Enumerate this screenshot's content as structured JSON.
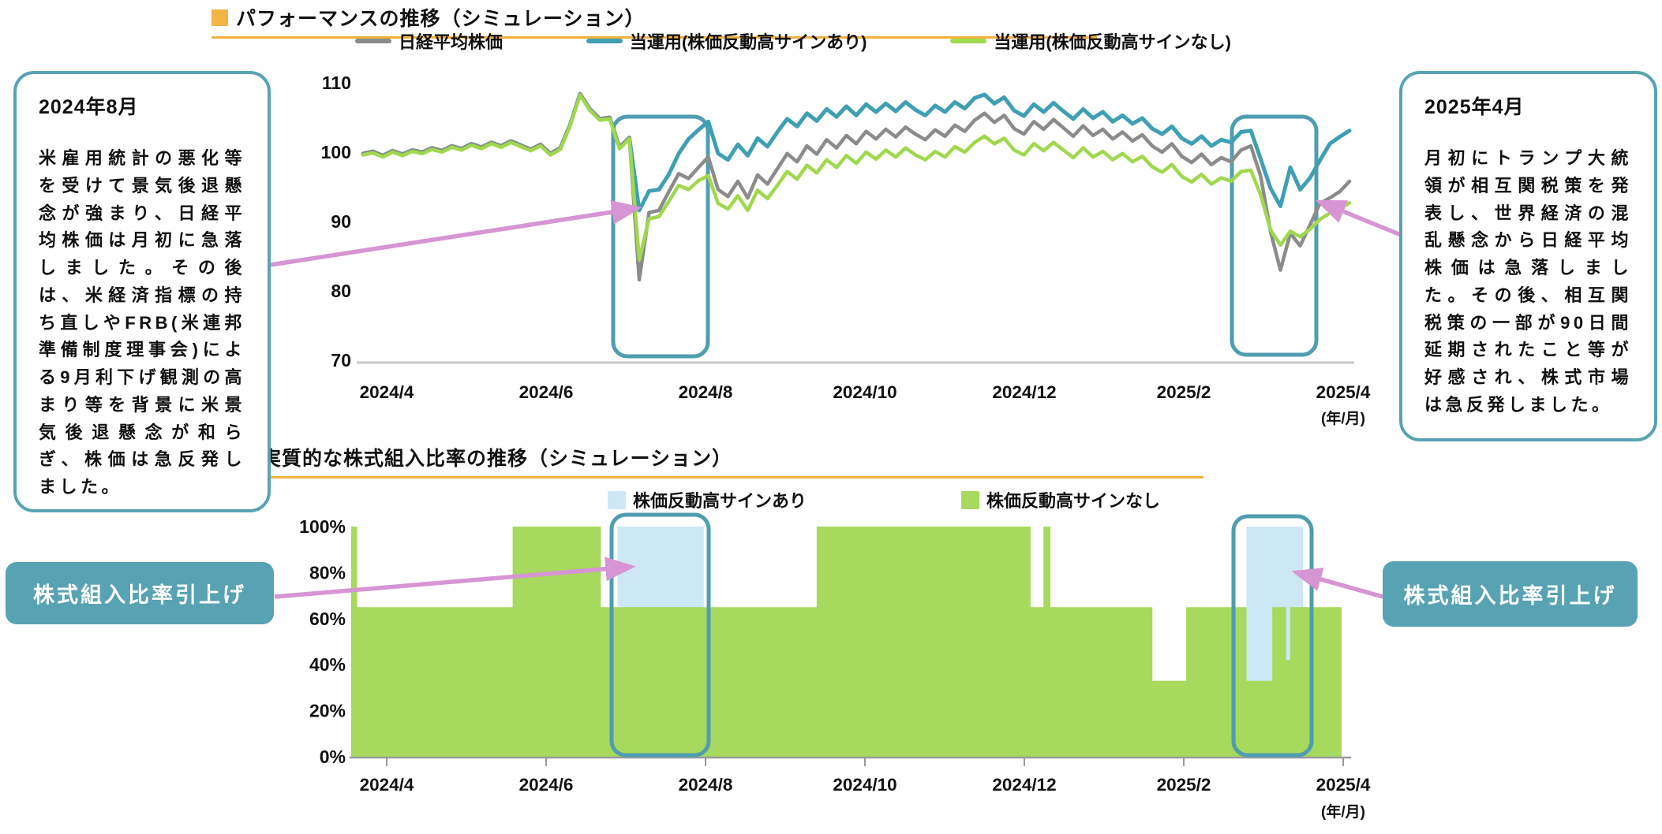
{
  "colors": {
    "accent_orange": "#f2b544",
    "underline_orange": "#f3b13c",
    "callout_teal": "#57a3b3",
    "highlight_box_stroke": "#4e9db0",
    "arrow_pink": "#d795d3",
    "axis_line": "#c9c9c9",
    "nikkei_gray": "#8b8b8b",
    "fund_on_teal": "#3f9fb3",
    "fund_off_green": "#a0d84e",
    "alloc_blue_fill": "#cde7f5",
    "alloc_green_fill": "#a6d95e"
  },
  "chart_data": [
    {
      "type": "line",
      "title": "パフォーマンスの推移（シミュレーション）",
      "x_start": "2024/4",
      "x_end": "2025/4",
      "x_labels": [
        "2024/4",
        "2024/6",
        "2024/8",
        "2024/10",
        "2024/12",
        "2025/2",
        "2025/4"
      ],
      "x_unit": "(年/月)",
      "y_ticks": [
        110,
        100,
        90,
        80,
        70
      ],
      "ylim": [
        70,
        112
      ],
      "grid": "off",
      "legend_position": "top",
      "legend": [
        {
          "label": "日経平均株価",
          "color": "#8b8b8b"
        },
        {
          "label": "当運用(株価反動高サインあり)",
          "color": "#3f9fb3"
        },
        {
          "label": "当運用(株価反動高サインなし)",
          "color": "#a0d84e"
        }
      ],
      "series": [
        {
          "name": "日経平均株価",
          "color": "#8b8b8b",
          "values": [
            99.8,
            100.1,
            99.5,
            100.2,
            99.7,
            100.3,
            100.0,
            100.6,
            100.2,
            100.9,
            100.5,
            101.2,
            100.7,
            101.4,
            100.9,
            101.6,
            101.0,
            100.4,
            101.1,
            99.8,
            100.6,
            104.0,
            108.4,
            106.2,
            104.8,
            105.0,
            100.7,
            102.1,
            81.6,
            91.3,
            91.6,
            94.3,
            96.9,
            96.2,
            97.8,
            99.3,
            94.6,
            93.6,
            95.8,
            93.4,
            96.7,
            95.4,
            97.6,
            99.8,
            98.6,
            100.9,
            99.7,
            101.8,
            100.6,
            102.4,
            101.2,
            103.0,
            101.9,
            103.3,
            102.2,
            103.6,
            102.6,
            101.8,
            103.2,
            102.3,
            103.9,
            103.0,
            104.6,
            105.6,
            104.3,
            105.3,
            103.4,
            102.6,
            104.4,
            103.3,
            104.7,
            103.5,
            102.3,
            103.8,
            102.4,
            103.3,
            101.9,
            102.9,
            101.6,
            102.5,
            100.9,
            100.0,
            101.2,
            99.4,
            98.5,
            99.7,
            98.2,
            99.2,
            98.6,
            100.3,
            100.9,
            96.5,
            88.5,
            83.0,
            88.3,
            86.5,
            89.5,
            92.6,
            93.4,
            94.3,
            95.8
          ]
        },
        {
          "name": "当運用(株価反動高サインあり)",
          "color": "#3f9fb3",
          "values": [
            99.8,
            100.1,
            99.5,
            100.2,
            99.7,
            100.3,
            100.0,
            100.6,
            100.2,
            100.9,
            100.5,
            101.2,
            100.7,
            101.4,
            100.9,
            101.6,
            101.0,
            100.4,
            101.1,
            99.8,
            100.6,
            104.0,
            108.4,
            106.2,
            104.8,
            105.0,
            100.7,
            102.1,
            91.6,
            94.4,
            94.6,
            96.8,
            99.8,
            101.9,
            103.2,
            104.4,
            99.8,
            98.9,
            101.1,
            99.5,
            102.0,
            100.8,
            102.9,
            104.8,
            103.7,
            105.6,
            104.5,
            106.2,
            105.1,
            106.6,
            105.3,
            106.9,
            105.8,
            107.0,
            105.9,
            107.2,
            106.1,
            105.3,
            106.7,
            105.8,
            107.2,
            106.3,
            107.8,
            108.3,
            107.0,
            107.9,
            106.0,
            105.2,
            106.9,
            105.8,
            107.1,
            105.9,
            104.8,
            106.2,
            104.9,
            105.8,
            104.4,
            105.3,
            104.1,
            104.9,
            103.4,
            102.6,
            103.7,
            102.0,
            101.2,
            102.3,
            100.9,
            101.8,
            101.4,
            102.9,
            103.1,
            99.0,
            94.8,
            92.2,
            97.8,
            94.6,
            96.3,
            98.8,
            101.2,
            102.2,
            103.1
          ]
        },
        {
          "name": "当運用(株価反動高サインなし)",
          "color": "#a0d84e",
          "values": [
            99.6,
            99.9,
            99.3,
            100.0,
            99.5,
            100.1,
            99.8,
            100.4,
            100.0,
            100.7,
            100.3,
            101.0,
            100.5,
            101.2,
            100.7,
            101.4,
            100.8,
            100.2,
            100.9,
            99.6,
            100.4,
            103.8,
            108.2,
            106.0,
            104.6,
            104.8,
            100.5,
            101.9,
            84.5,
            90.4,
            90.7,
            92.9,
            95.2,
            94.6,
            95.9,
            96.6,
            92.6,
            91.8,
            93.7,
            91.6,
            94.5,
            93.3,
            95.2,
            97.2,
            96.1,
            98.1,
            97.0,
            98.9,
            97.8,
            99.5,
            98.4,
            100.0,
            99.0,
            100.3,
            99.3,
            100.6,
            99.6,
            98.9,
            100.1,
            99.3,
            100.8,
            100.0,
            101.4,
            102.3,
            101.2,
            102.0,
            100.3,
            99.6,
            101.2,
            100.2,
            101.4,
            100.3,
            99.2,
            100.6,
            99.3,
            100.1,
            98.9,
            99.8,
            98.6,
            99.4,
            97.9,
            97.1,
            98.2,
            96.5,
            95.7,
            96.8,
            95.4,
            96.3,
            95.8,
            97.2,
            97.4,
            93.8,
            88.8,
            86.6,
            88.6,
            87.8,
            88.9,
            90.3,
            91.2,
            91.8,
            92.7
          ]
        }
      ]
    },
    {
      "type": "area",
      "title": "実質的な株式組入比率の推移（シミュレーション）",
      "x_start": "2024/4",
      "x_end": "2025/4",
      "x_labels": [
        "2024/4",
        "2024/6",
        "2024/8",
        "2024/10",
        "2024/12",
        "2025/2",
        "2025/4"
      ],
      "x_unit": "(年/月)",
      "y_ticks": [
        "100%",
        "80%",
        "60%",
        "40%",
        "20%",
        "0%"
      ],
      "ylim_percent": [
        0,
        100
      ],
      "grid": "off",
      "legend_position": "top",
      "legend": [
        {
          "label": "株価反動高サインあり",
          "color": "#cde7f5"
        },
        {
          "label": "株価反動高サインなし",
          "color": "#a6d95e"
        }
      ],
      "green_area_steps_frac_percent": [
        [
          0.0,
          100
        ],
        [
          0.006,
          65
        ],
        [
          0.163,
          100
        ],
        [
          0.252,
          65
        ],
        [
          0.47,
          100
        ],
        [
          0.686,
          65
        ],
        [
          0.699,
          100
        ],
        [
          0.706,
          65
        ],
        [
          0.809,
          33
        ],
        [
          0.843,
          65
        ],
        [
          0.904,
          33
        ],
        [
          0.93,
          65
        ],
        [
          0.944,
          42
        ],
        [
          0.948,
          65
        ]
      ],
      "blue_overlay_segments_frac": [
        [
          0.269,
          0.356
        ],
        [
          0.904,
          0.961
        ]
      ]
    }
  ],
  "annotations": {
    "aug2024": {
      "title": "2024年8月",
      "body": "米雇用統計の悪化等を受けて景気後退懸念が強まり、日経平均株価は月初に急落しました。その後は、米経済指標の持ち直しやFRB(米連邦準備制度理事会)による9月利下げ観測の高まり等を背景に米景気後退懸念が和らぎ、株価は急反発しました。"
    },
    "apr2025": {
      "title": "2025年4月",
      "body": "月初にトランプ大統領が相互関税策を発表し、世界経済の混乱懸念から日経平均株価は急落しました。その後、相互関税策の一部が90日間延期されたこと等が好感され、株式市場は急反発しました。"
    },
    "raise_left": {
      "label": "株式組入比率引上げ"
    },
    "raise_right": {
      "label": "株式組入比率引上げ"
    }
  }
}
